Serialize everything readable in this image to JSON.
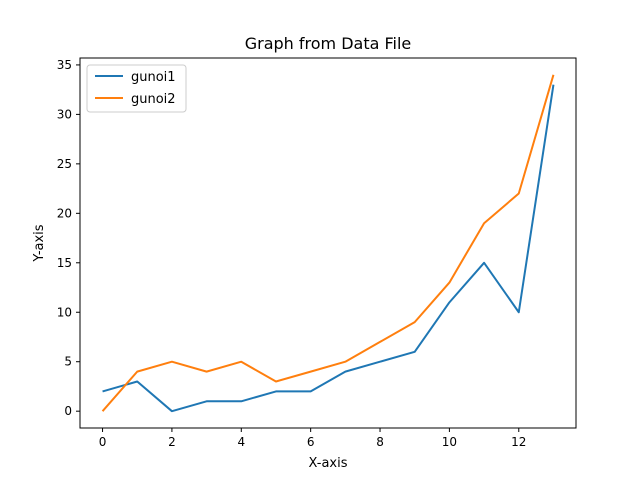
{
  "chart_data": {
    "type": "line",
    "title": "Graph from Data File",
    "xlabel": "X-axis",
    "ylabel": "Y-axis",
    "x": [
      0,
      1,
      2,
      3,
      4,
      5,
      6,
      7,
      8,
      9,
      10,
      11,
      12,
      13
    ],
    "series": [
      {
        "name": "gunoi1",
        "color": "#1f77b4",
        "values": [
          2,
          3,
          0,
          1,
          1,
          2,
          2,
          4,
          5,
          6,
          11,
          15,
          10,
          33
        ]
      },
      {
        "name": "gunoi2",
        "color": "#ff7f0e",
        "values": [
          0,
          4,
          5,
          4,
          5,
          3,
          4,
          5,
          7,
          9,
          13,
          19,
          22,
          34
        ]
      }
    ],
    "xlim": [
      -0.65,
      13.65
    ],
    "ylim": [
      -1.7,
      35.7
    ],
    "xticks": [
      "0",
      "2",
      "4",
      "6",
      "8",
      "10",
      "12"
    ],
    "yticks": [
      "0",
      "5",
      "10",
      "15",
      "20",
      "25",
      "30",
      "35"
    ],
    "grid": false,
    "legend_position": "upper-left"
  }
}
